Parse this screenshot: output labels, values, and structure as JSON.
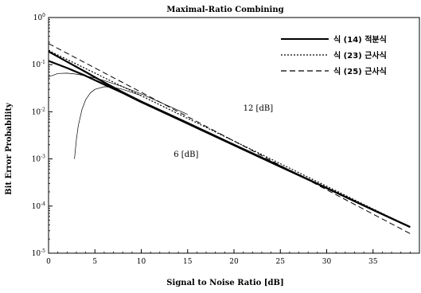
{
  "chart_data": {
    "type": "line",
    "title": "Maximal-Ratio Combining",
    "xlabel": "Signal to Noise Ratio [dB]",
    "ylabel": "Bit Error Probability",
    "xlim": [
      0,
      40
    ],
    "ylim": [
      1e-05,
      1
    ],
    "yscale": "log",
    "grid": false,
    "legend_position": "top-right",
    "x_ticks": [
      0,
      5,
      10,
      15,
      20,
      25,
      30,
      35
    ],
    "y_ticks": [
      {
        "value": 1,
        "base": "10",
        "exp": "0"
      },
      {
        "value": 0.1,
        "base": "10",
        "exp": "-1"
      },
      {
        "value": 0.01,
        "base": "10",
        "exp": "-2"
      },
      {
        "value": 0.001,
        "base": "10",
        "exp": "-3"
      },
      {
        "value": 0.0001,
        "base": "10",
        "exp": "-4"
      },
      {
        "value": 1e-05,
        "base": "10",
        "exp": "-5"
      }
    ],
    "series": [
      {
        "name": "식 (14) 적분식",
        "style": "solid",
        "width": 2.2,
        "group": "6 dB",
        "x": [
          0,
          2,
          4,
          6,
          8,
          10,
          15,
          20,
          25,
          30,
          35,
          39
        ],
        "y": [
          0.12,
          0.085,
          0.058,
          0.038,
          0.025,
          0.016,
          0.0056,
          0.00195,
          0.00068,
          0.00024,
          8.3e-05,
          3.6e-05
        ]
      },
      {
        "name": "식 (14) 적분식",
        "style": "solid",
        "width": 2.2,
        "group": "12 dB",
        "x": [
          0,
          2,
          4,
          6,
          8,
          10,
          15,
          20,
          25,
          30,
          35,
          39
        ],
        "y": [
          0.19,
          0.115,
          0.07,
          0.042,
          0.026,
          0.0165,
          0.0058,
          0.002,
          0.0007,
          0.00024,
          8.3e-05,
          3.6e-05
        ]
      },
      {
        "name": "식 (23) 근사식",
        "style": "dotted",
        "width": 1.2,
        "x": [
          0,
          39
        ],
        "y": [
          0.2,
          3.6e-05
        ]
      },
      {
        "name": "식 (25) 근사식",
        "style": "dashed",
        "width": 1.0,
        "x": [
          0,
          39
        ],
        "y": [
          0.28,
          2.6e-05
        ]
      },
      {
        "name": "",
        "style": "thin",
        "width": 0.7,
        "x": [
          0,
          1,
          2,
          3,
          4,
          5,
          6,
          8,
          10,
          12,
          15
        ],
        "y": [
          0.055,
          0.065,
          0.066,
          0.063,
          0.058,
          0.052,
          0.046,
          0.034,
          0.024,
          0.016,
          0.0088
        ]
      },
      {
        "name": "",
        "style": "thin",
        "width": 0.7,
        "x": [
          2.8,
          3.0,
          3.2,
          3.6,
          4.0,
          4.5,
          5.0,
          6.0,
          7.0,
          8.0,
          10.0
        ],
        "y": [
          0.001,
          0.0025,
          0.005,
          0.011,
          0.018,
          0.025,
          0.03,
          0.034,
          0.033,
          0.03,
          0.022
        ]
      }
    ],
    "legend": [
      {
        "label": "식 (14) 적분식",
        "style": "solid"
      },
      {
        "label": "식 (23) 근사식",
        "style": "dotted"
      },
      {
        "label": "식 (25) 근사식",
        "style": "dashed"
      }
    ],
    "annotations": [
      {
        "text": "12 [dB]",
        "x": 21,
        "y": 0.0105
      },
      {
        "text": "6 [dB]",
        "x": 13.5,
        "y": 0.0011
      }
    ]
  }
}
